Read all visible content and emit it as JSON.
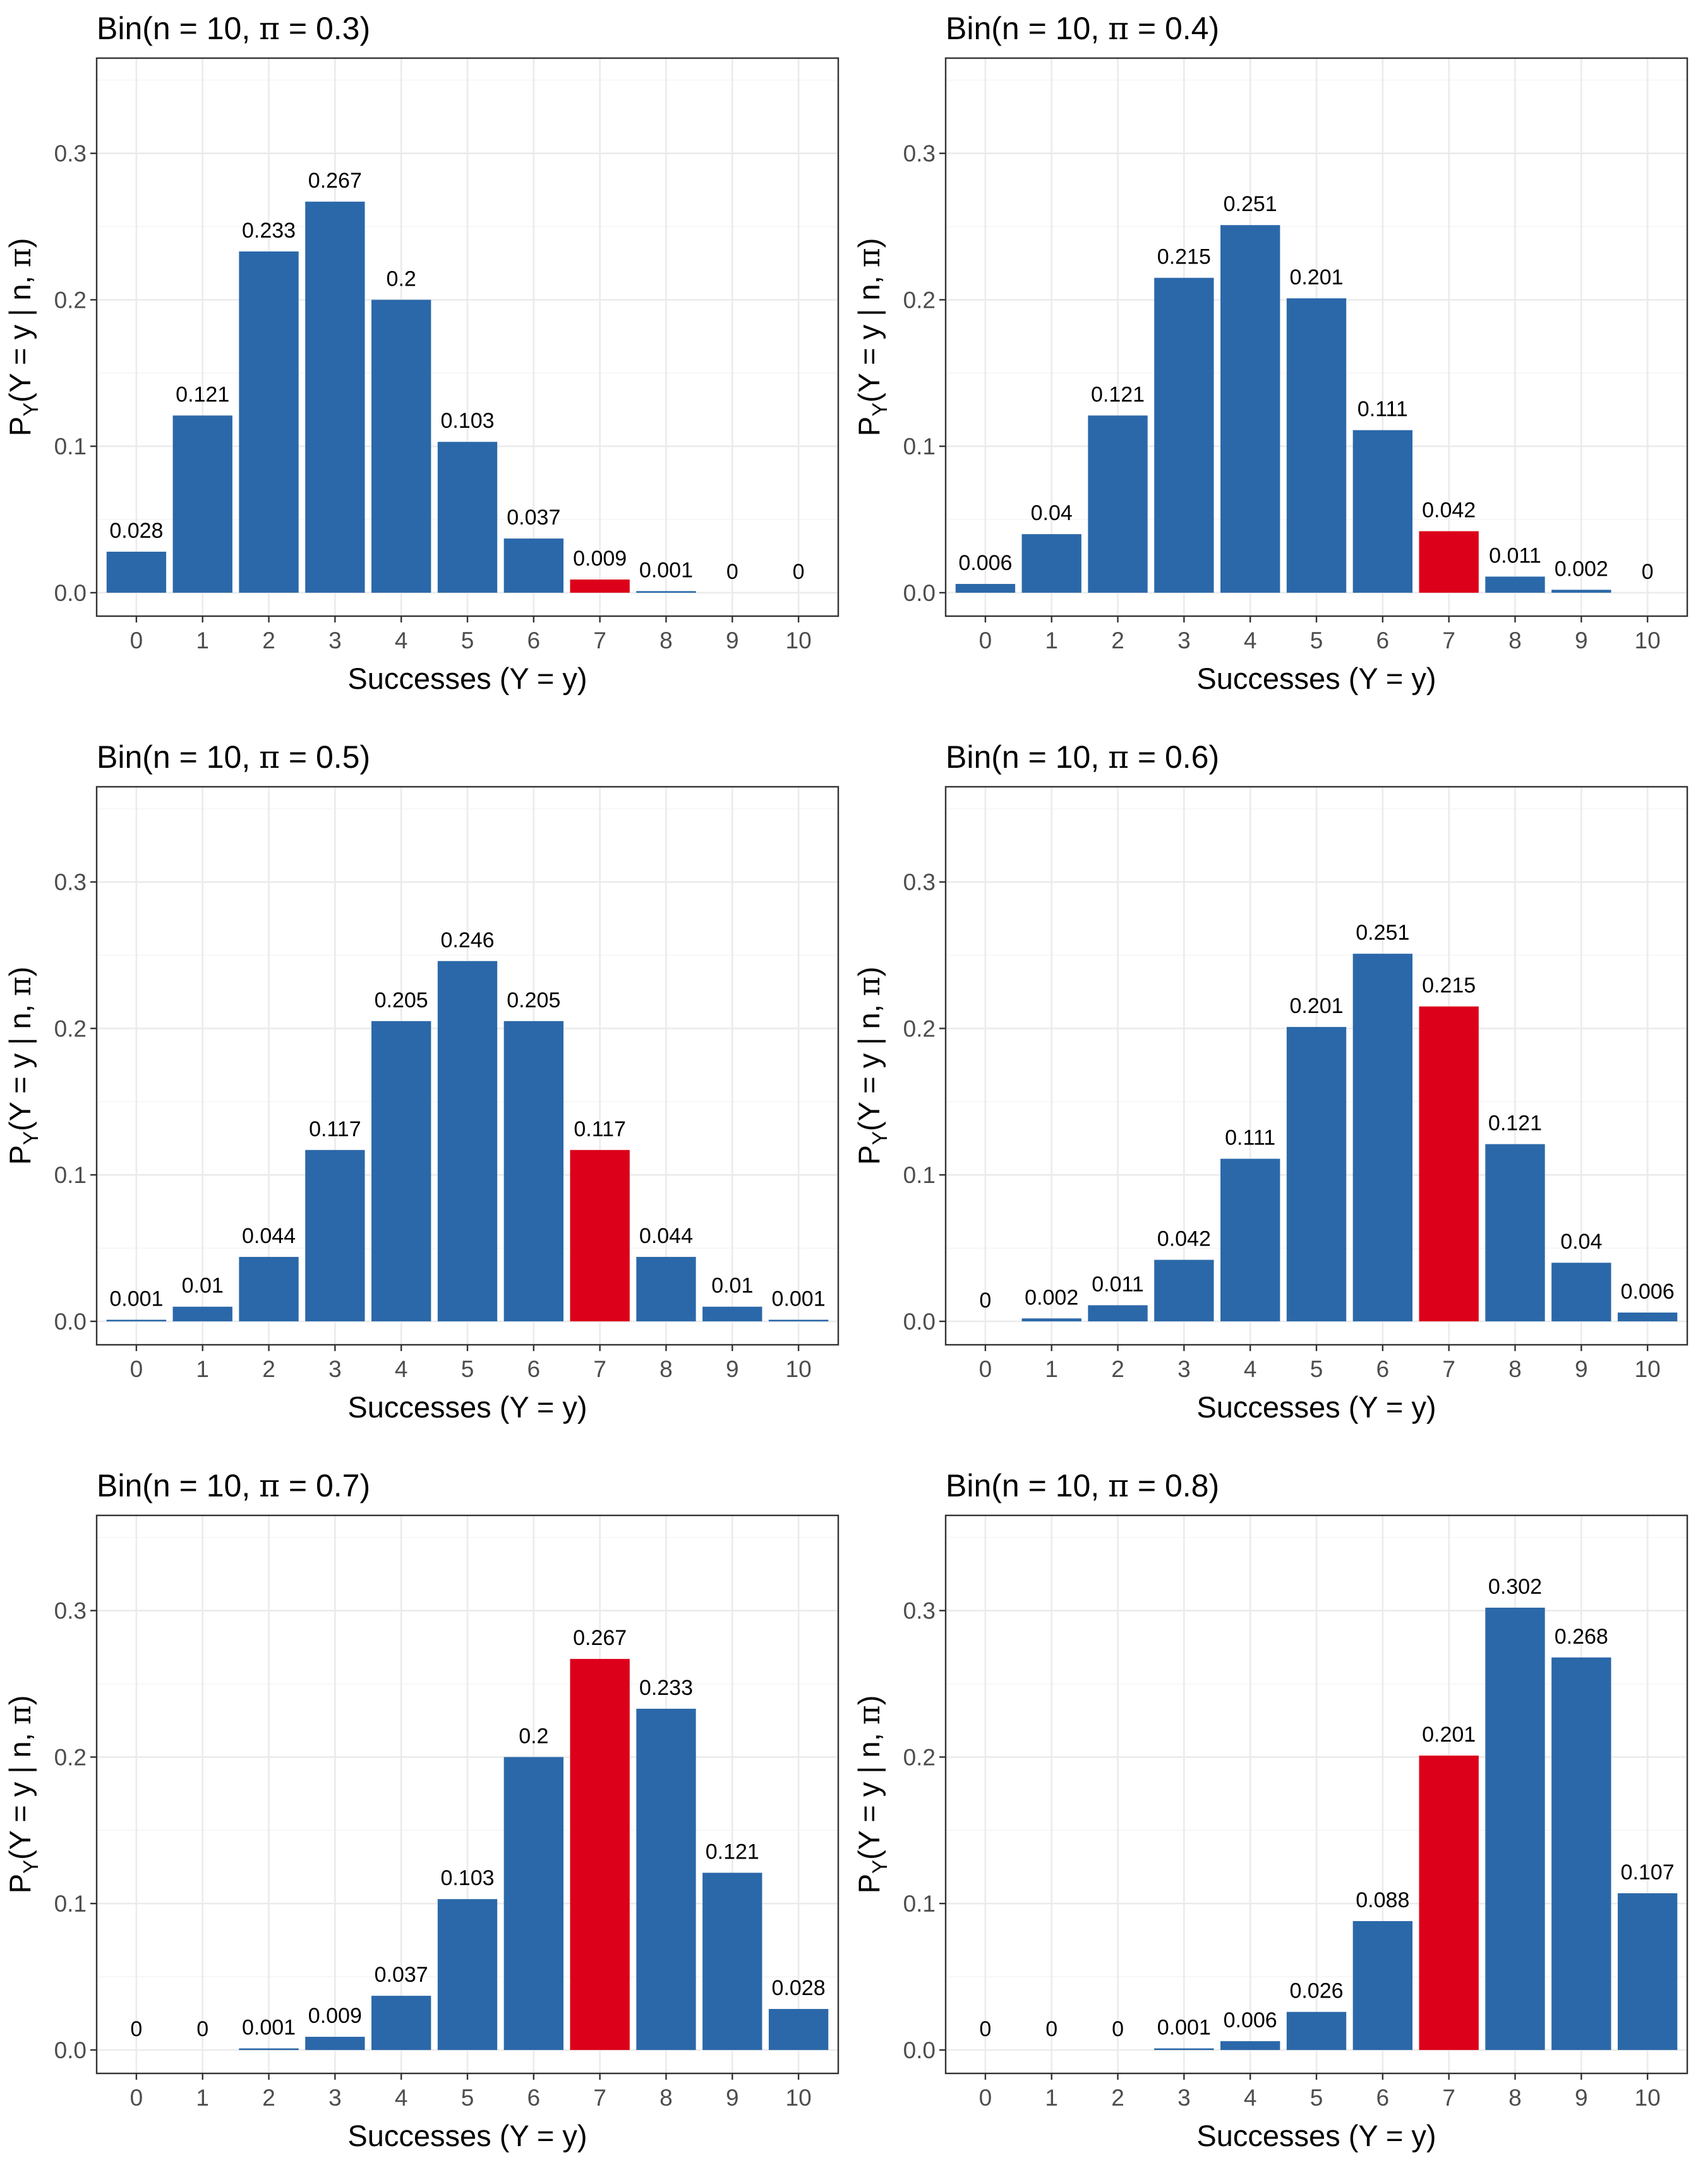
{
  "figure": {
    "bar_color": "#2B68A9",
    "highlight_color": "#DC001A",
    "highlight_category": 7
  },
  "chart_data": [
    {
      "type": "bar",
      "title_prefix": "Bin(n = 10, ",
      "title_symbol": "π",
      "title_suffix": " = 0.3)",
      "xlabel": "Successes (Y = y)",
      "ylabel_p": "P",
      "ylabel_sub": "Y",
      "ylabel_rest": "(Y = y | n, ",
      "ylabel_symbol": "π",
      "ylabel_close": ")",
      "categories": [
        0,
        1,
        2,
        3,
        4,
        5,
        6,
        7,
        8,
        9,
        10
      ],
      "values": [
        0.028,
        0.121,
        0.233,
        0.267,
        0.2,
        0.103,
        0.037,
        0.009,
        0.001,
        0,
        0
      ],
      "labels": [
        "0.028",
        "0.121",
        "0.233",
        "0.267",
        "0.2",
        "0.103",
        "0.037",
        "0.009",
        "0.001",
        "0",
        "0"
      ],
      "yticks": [
        "0.0",
        "0.1",
        "0.2",
        "0.3"
      ],
      "ylim": [
        -0.016,
        0.365
      ],
      "grid": true
    },
    {
      "type": "bar",
      "title_prefix": "Bin(n = 10, ",
      "title_symbol": "π",
      "title_suffix": " = 0.4)",
      "xlabel": "Successes (Y = y)",
      "ylabel_p": "P",
      "ylabel_sub": "Y",
      "ylabel_rest": "(Y = y | n, ",
      "ylabel_symbol": "π",
      "ylabel_close": ")",
      "categories": [
        0,
        1,
        2,
        3,
        4,
        5,
        6,
        7,
        8,
        9,
        10
      ],
      "values": [
        0.006,
        0.04,
        0.121,
        0.215,
        0.251,
        0.201,
        0.111,
        0.042,
        0.011,
        0.002,
        0
      ],
      "labels": [
        "0.006",
        "0.04",
        "0.121",
        "0.215",
        "0.251",
        "0.201",
        "0.111",
        "0.042",
        "0.011",
        "0.002",
        "0"
      ],
      "yticks": [
        "0.0",
        "0.1",
        "0.2",
        "0.3"
      ],
      "ylim": [
        -0.016,
        0.365
      ],
      "grid": true
    },
    {
      "type": "bar",
      "title_prefix": "Bin(n = 10, ",
      "title_symbol": "π",
      "title_suffix": " = 0.5)",
      "xlabel": "Successes (Y = y)",
      "ylabel_p": "P",
      "ylabel_sub": "Y",
      "ylabel_rest": "(Y = y | n, ",
      "ylabel_symbol": "π",
      "ylabel_close": ")",
      "categories": [
        0,
        1,
        2,
        3,
        4,
        5,
        6,
        7,
        8,
        9,
        10
      ],
      "values": [
        0.001,
        0.01,
        0.044,
        0.117,
        0.205,
        0.246,
        0.205,
        0.117,
        0.044,
        0.01,
        0.001
      ],
      "labels": [
        "0.001",
        "0.01",
        "0.044",
        "0.117",
        "0.205",
        "0.246",
        "0.205",
        "0.117",
        "0.044",
        "0.01",
        "0.001"
      ],
      "yticks": [
        "0.0",
        "0.1",
        "0.2",
        "0.3"
      ],
      "ylim": [
        -0.016,
        0.365
      ],
      "grid": true
    },
    {
      "type": "bar",
      "title_prefix": "Bin(n = 10, ",
      "title_symbol": "π",
      "title_suffix": " = 0.6)",
      "xlabel": "Successes (Y = y)",
      "ylabel_p": "P",
      "ylabel_sub": "Y",
      "ylabel_rest": "(Y = y | n, ",
      "ylabel_symbol": "π",
      "ylabel_close": ")",
      "categories": [
        0,
        1,
        2,
        3,
        4,
        5,
        6,
        7,
        8,
        9,
        10
      ],
      "values": [
        0,
        0.002,
        0.011,
        0.042,
        0.111,
        0.201,
        0.251,
        0.215,
        0.121,
        0.04,
        0.006
      ],
      "labels": [
        "0",
        "0.002",
        "0.011",
        "0.042",
        "0.111",
        "0.201",
        "0.251",
        "0.215",
        "0.121",
        "0.04",
        "0.006"
      ],
      "yticks": [
        "0.0",
        "0.1",
        "0.2",
        "0.3"
      ],
      "ylim": [
        -0.016,
        0.365
      ],
      "grid": true
    },
    {
      "type": "bar",
      "title_prefix": "Bin(n = 10, ",
      "title_symbol": "π",
      "title_suffix": " = 0.7)",
      "xlabel": "Successes (Y = y)",
      "ylabel_p": "P",
      "ylabel_sub": "Y",
      "ylabel_rest": "(Y = y | n, ",
      "ylabel_symbol": "π",
      "ylabel_close": ")",
      "categories": [
        0,
        1,
        2,
        3,
        4,
        5,
        6,
        7,
        8,
        9,
        10
      ],
      "values": [
        0,
        0,
        0.001,
        0.009,
        0.037,
        0.103,
        0.2,
        0.267,
        0.233,
        0.121,
        0.028
      ],
      "labels": [
        "0",
        "0",
        "0.001",
        "0.009",
        "0.037",
        "0.103",
        "0.2",
        "0.267",
        "0.233",
        "0.121",
        "0.028"
      ],
      "yticks": [
        "0.0",
        "0.1",
        "0.2",
        "0.3"
      ],
      "ylim": [
        -0.016,
        0.365
      ],
      "grid": true
    },
    {
      "type": "bar",
      "title_prefix": "Bin(n = 10, ",
      "title_symbol": "π",
      "title_suffix": " = 0.8)",
      "xlabel": "Successes (Y = y)",
      "ylabel_p": "P",
      "ylabel_sub": "Y",
      "ylabel_rest": "(Y = y | n, ",
      "ylabel_symbol": "π",
      "ylabel_close": ")",
      "categories": [
        0,
        1,
        2,
        3,
        4,
        5,
        6,
        7,
        8,
        9,
        10
      ],
      "values": [
        0,
        0,
        0,
        0.001,
        0.006,
        0.026,
        0.088,
        0.201,
        0.302,
        0.268,
        0.107
      ],
      "labels": [
        "0",
        "0",
        "0",
        "0.001",
        "0.006",
        "0.026",
        "0.088",
        "0.201",
        "0.302",
        "0.268",
        "0.107"
      ],
      "yticks": [
        "0.0",
        "0.1",
        "0.2",
        "0.3"
      ],
      "ylim": [
        -0.016,
        0.365
      ],
      "grid": true
    }
  ]
}
